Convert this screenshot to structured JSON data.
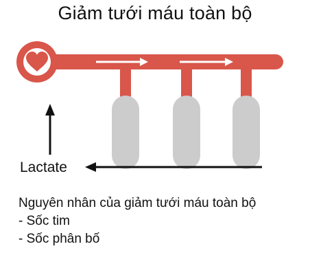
{
  "title": "Giảm tưới máu toàn bộ",
  "diagram": {
    "heart_icon": "heart-icon",
    "flow_color": "#d9564a",
    "tissue_color": "#cccccc",
    "lactate_label": "Lactate"
  },
  "caption": {
    "heading": "Nguyên nhân của giảm tưới máu toàn bộ",
    "items": [
      "- Sốc tim",
      "- Sốc phân bố"
    ]
  }
}
